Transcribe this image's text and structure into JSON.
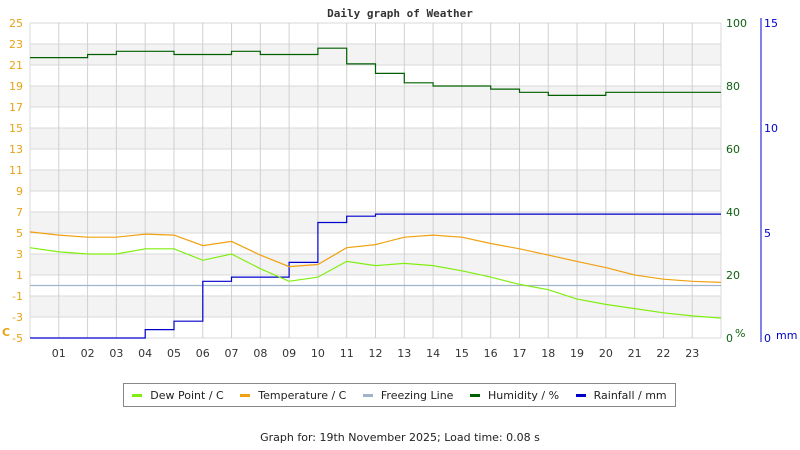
{
  "chart_data": {
    "type": "line",
    "title": "Daily graph of Weather",
    "xlabel": "",
    "x_ticks": [
      "01",
      "02",
      "03",
      "04",
      "05",
      "06",
      "07",
      "08",
      "09",
      "10",
      "11",
      "12",
      "13",
      "14",
      "15",
      "16",
      "17",
      "18",
      "19",
      "20",
      "21",
      "22",
      "23"
    ],
    "x": [
      0,
      1,
      2,
      3,
      4,
      5,
      6,
      7,
      8,
      9,
      10,
      11,
      12,
      13,
      14,
      15,
      16,
      17,
      18,
      19,
      20,
      21,
      22,
      23,
      24
    ],
    "axes": {
      "left": {
        "label": "C",
        "ticks": [
          25,
          23,
          21,
          19,
          17,
          15,
          13,
          11,
          9,
          7,
          5,
          3,
          1,
          -1,
          -3,
          -5
        ],
        "range": [
          -5,
          25
        ],
        "color": "#e8a317"
      },
      "right1": {
        "label": "%",
        "ticks": [
          100,
          80,
          60,
          40,
          20,
          0
        ],
        "range": [
          0,
          100
        ],
        "color": "#106010"
      },
      "right2": {
        "label": "mm",
        "ticks": [
          15,
          10,
          5,
          0
        ],
        "range": [
          0,
          15
        ],
        "color": "#0000cc"
      }
    },
    "grid": true,
    "series": [
      {
        "name": "Dew Point / C",
        "axis": "left",
        "color": "#80ee10",
        "values": [
          3.6,
          3.2,
          3.0,
          3.0,
          3.5,
          3.5,
          2.4,
          3.0,
          1.6,
          0.4,
          0.8,
          2.3,
          1.9,
          2.1,
          1.9,
          1.4,
          0.8,
          0.1,
          -0.4,
          -1.3,
          -1.8,
          -2.2,
          -2.6,
          -2.9,
          -3.1
        ]
      },
      {
        "name": "Temperature / C",
        "axis": "left",
        "color": "#f0a010",
        "values": [
          5.1,
          4.8,
          4.6,
          4.6,
          4.9,
          4.8,
          3.8,
          4.2,
          2.9,
          1.8,
          2.0,
          3.6,
          3.9,
          4.6,
          4.8,
          4.6,
          4.0,
          3.5,
          2.9,
          2.3,
          1.7,
          1.0,
          0.6,
          0.4,
          0.3
        ]
      },
      {
        "name": "Freezing Line",
        "axis": "left",
        "color": "#a0b4cc",
        "values": [
          0,
          0,
          0,
          0,
          0,
          0,
          0,
          0,
          0,
          0,
          0,
          0,
          0,
          0,
          0,
          0,
          0,
          0,
          0,
          0,
          0,
          0,
          0,
          0,
          0
        ]
      },
      {
        "name": "Humidity / %",
        "axis": "right1",
        "color": "#006000",
        "values": [
          89,
          89,
          90,
          91,
          91,
          90,
          90,
          91,
          90,
          90,
          92,
          87,
          84,
          81,
          80,
          80,
          79,
          78,
          77,
          77,
          78,
          78,
          78,
          78,
          78
        ]
      },
      {
        "name": "Rainfall / mm",
        "axis": "right2",
        "color": "#0000cc",
        "values": [
          0,
          0,
          0,
          0,
          0.4,
          0.8,
          2.7,
          2.9,
          2.9,
          3.6,
          5.5,
          5.8,
          5.9,
          5.9,
          5.9,
          5.9,
          5.9,
          5.9,
          5.9,
          5.9,
          5.9,
          5.9,
          5.9,
          5.9,
          5.9
        ]
      }
    ],
    "legend_position": "bottom"
  },
  "legend": [
    {
      "label": "Dew Point / C",
      "color": "#80ee10"
    },
    {
      "label": "Temperature / C",
      "color": "#f0a010"
    },
    {
      "label": "Freezing Line",
      "color": "#a0b4cc"
    },
    {
      "label": "Humidity / %",
      "color": "#006000"
    },
    {
      "label": "Rainfall / mm",
      "color": "#0000cc"
    }
  ],
  "footer": "Graph for: 19th November 2025; Load time: 0.08 s"
}
